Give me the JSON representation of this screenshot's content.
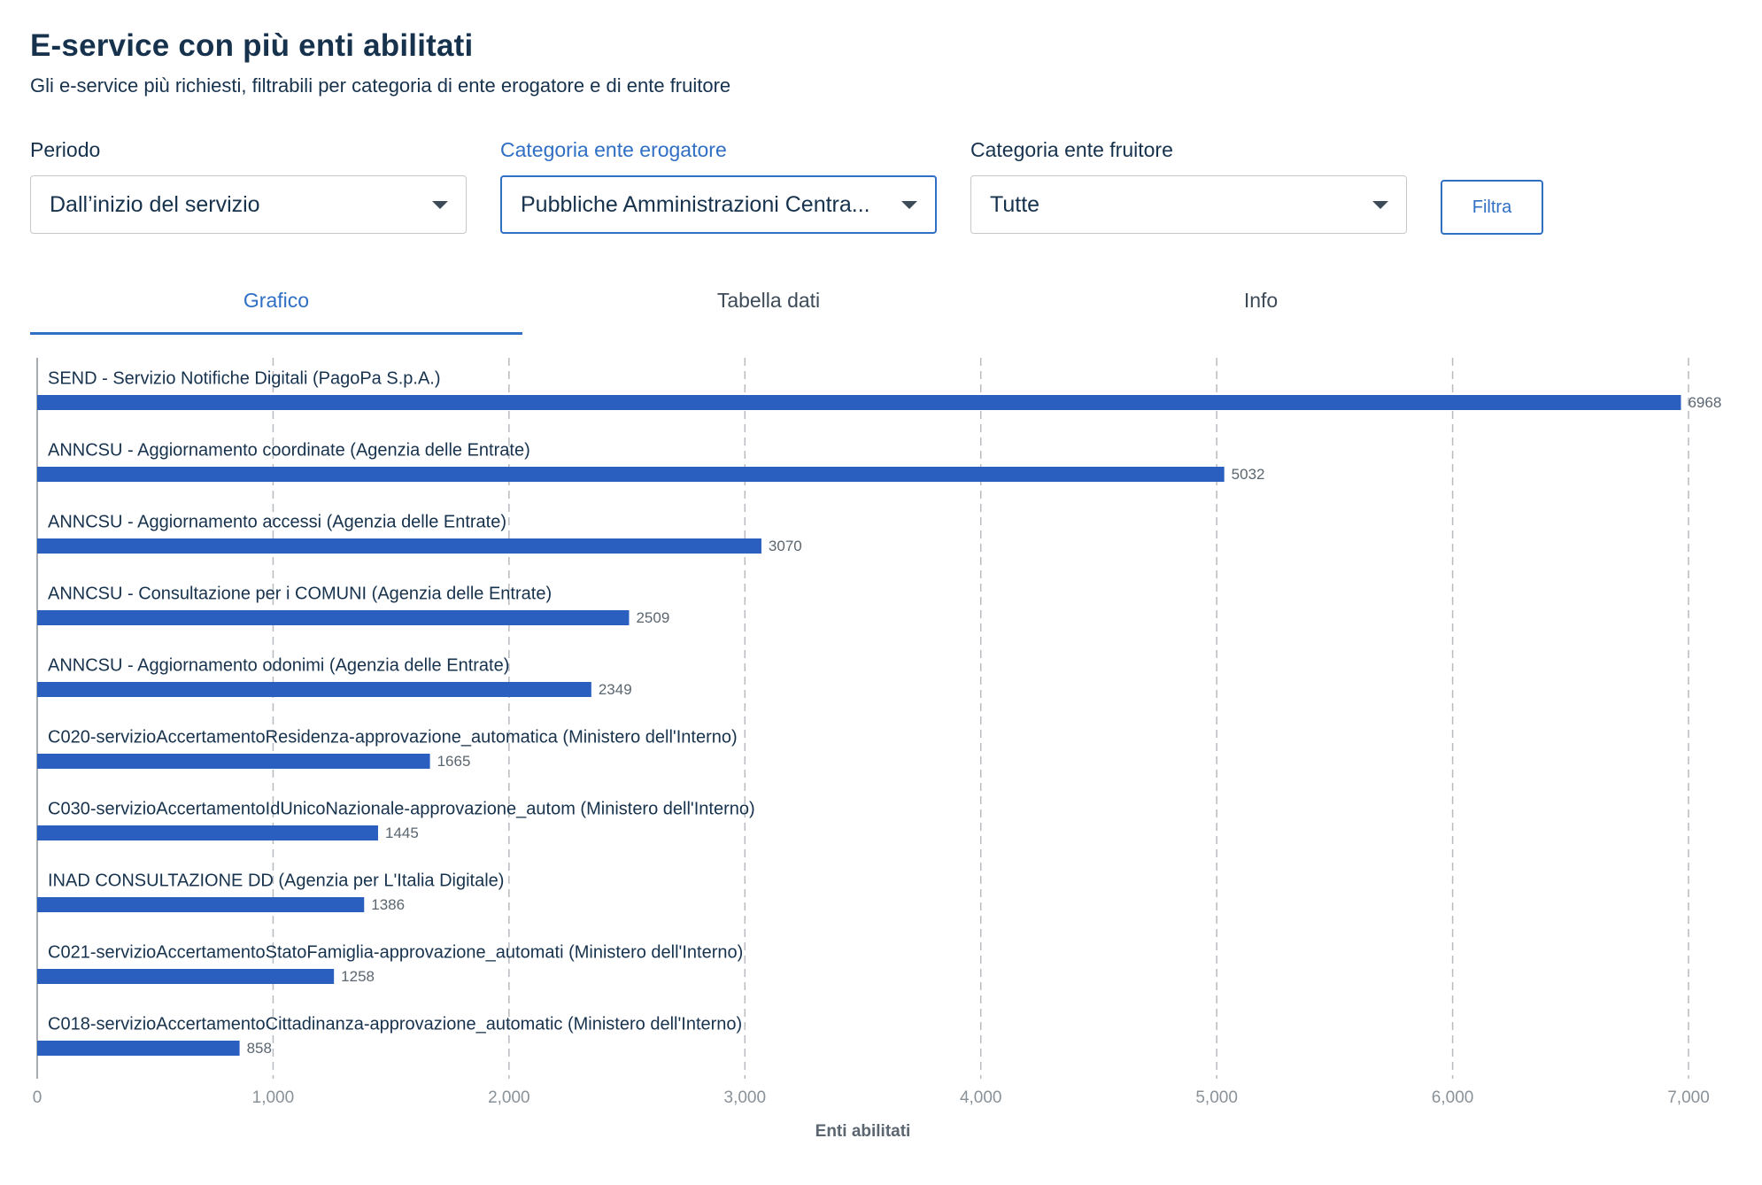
{
  "header": {
    "title": "E-service con più enti abilitati",
    "subtitle": "Gli e-service più richiesti, filtrabili per categoria di ente erogatore e di ente fruitore"
  },
  "filters": {
    "periodo": {
      "label": "Periodo",
      "value": "Dall’inizio del servizio"
    },
    "erogatore": {
      "label": "Categoria ente erogatore",
      "value": "Pubbliche Amministrazioni Centra..."
    },
    "fruitore": {
      "label": "Categoria ente fruitore",
      "value": "Tutte"
    },
    "button_label": "Filtra"
  },
  "tabs": [
    {
      "label": "Grafico",
      "active": true
    },
    {
      "label": "Tabella dati",
      "active": false
    },
    {
      "label": "Info",
      "active": false
    }
  ],
  "colors": {
    "accent": "#2f6fc4",
    "bar": "#2a5fc0",
    "text": "#17324d"
  },
  "chart_data": {
    "type": "bar",
    "orientation": "horizontal",
    "categories": [
      "SEND - Servizio Notifiche Digitali (PagoPa S.p.A.)",
      "ANNCSU - Aggiornamento coordinate (Agenzia delle Entrate)",
      "ANNCSU - Aggiornamento accessi (Agenzia delle Entrate)",
      "ANNCSU - Consultazione per i COMUNI (Agenzia delle Entrate)",
      "ANNCSU - Aggiornamento odonimi (Agenzia delle Entrate)",
      "C020-servizioAccertamentoResidenza-approvazione_automatica (Ministero dell'Interno)",
      "C030-servizioAccertamentoIdUnicoNazionale-approvazione_autom (Ministero dell'Interno)",
      "INAD CONSULTAZIONE DD (Agenzia per L'Italia Digitale)",
      "C021-servizioAccertamentoStatoFamiglia-approvazione_automati (Ministero dell'Interno)",
      "C018-servizioAccertamentoCittadinanza-approvazione_automatic (Ministero dell'Interno)"
    ],
    "values": [
      6968,
      5032,
      3070,
      2509,
      2349,
      1665,
      1445,
      1386,
      1258,
      858
    ],
    "value_labels": [
      "6968",
      "5032",
      "3070",
      "2509",
      "2349",
      "1665",
      "1445",
      "1386",
      "1258",
      "858"
    ],
    "xlim": [
      0,
      7000
    ],
    "x_ticks": [
      0,
      1000,
      2000,
      3000,
      4000,
      5000,
      6000,
      7000
    ],
    "x_tick_labels": [
      "0",
      "1,000",
      "2,000",
      "3,000",
      "4,000",
      "5,000",
      "6,000",
      "7,000"
    ],
    "xlabel": "Enti abilitati",
    "ylabel": "",
    "grid": "vertical-dashed",
    "legend": "none"
  }
}
